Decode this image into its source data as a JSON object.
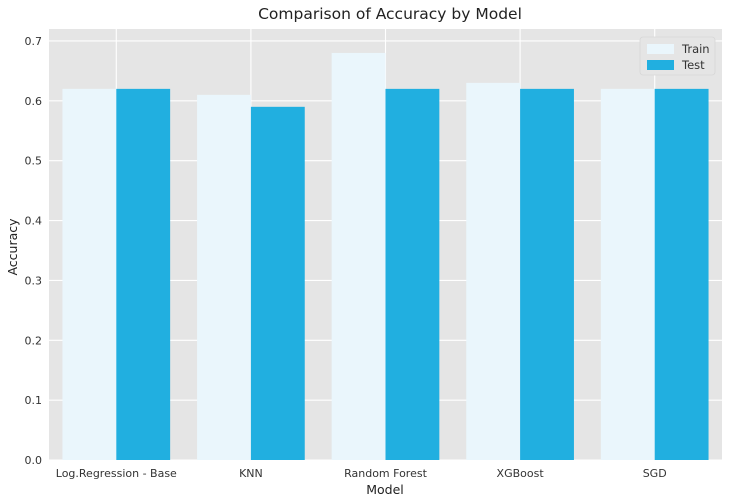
{
  "chart_data": {
    "type": "bar",
    "title": "Comparison of Accuracy by Model",
    "xlabel": "Model",
    "ylabel": "Accuracy",
    "categories": [
      "Log.Regression - Base",
      "KNN",
      "Random Forest",
      "XGBoost",
      "SGD"
    ],
    "series": [
      {
        "name": "Train",
        "values": [
          0.62,
          0.61,
          0.68,
          0.63,
          0.62
        ],
        "color": "#eaf6fc"
      },
      {
        "name": "Test",
        "values": [
          0.62,
          0.59,
          0.62,
          0.62,
          0.62
        ],
        "color": "#21afe0"
      }
    ],
    "ylim": [
      0,
      0.72
    ],
    "yticks": [
      "0.0",
      "0.1",
      "0.2",
      "0.3",
      "0.4",
      "0.5",
      "0.6",
      "0.7"
    ],
    "grid": true,
    "legend_position": "top-right",
    "background_color": "#e5e5e5",
    "grid_color": "#ffffff"
  }
}
